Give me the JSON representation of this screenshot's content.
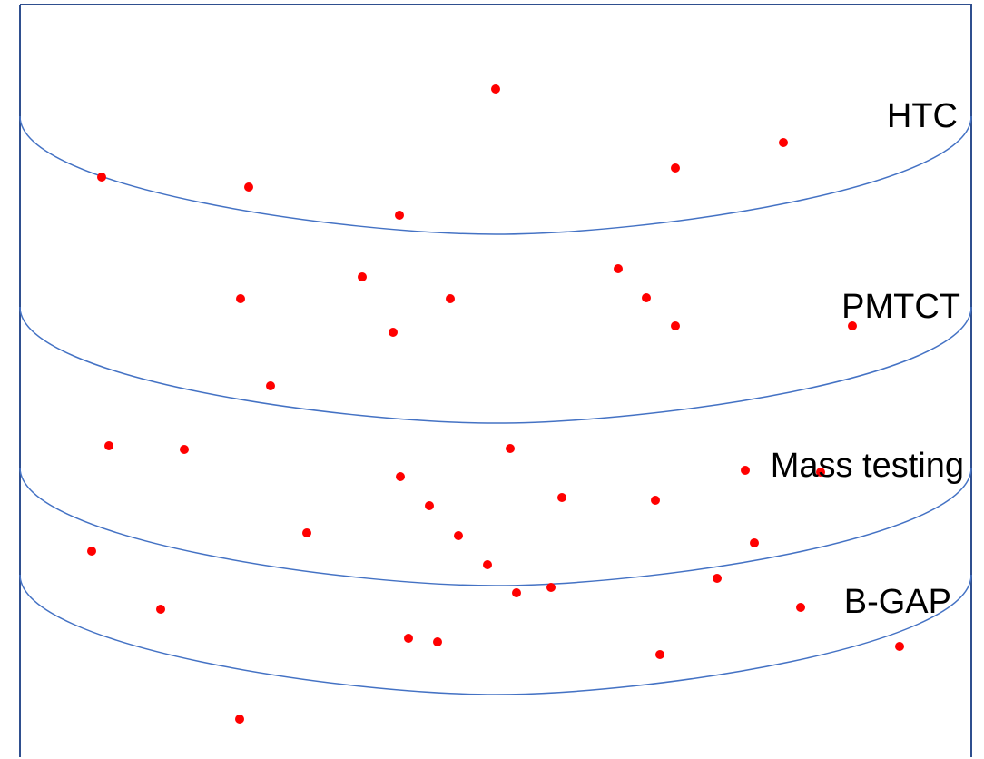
{
  "diagram": {
    "layers": [
      {
        "name": "HTC"
      },
      {
        "name": "PMTCT"
      },
      {
        "name": "Mass testing"
      },
      {
        "name": "B-GAP"
      }
    ],
    "colors": {
      "outline": "#4472C4",
      "dot": "#FF0000",
      "text": "#000000",
      "background": "#FFFFFF"
    }
  }
}
